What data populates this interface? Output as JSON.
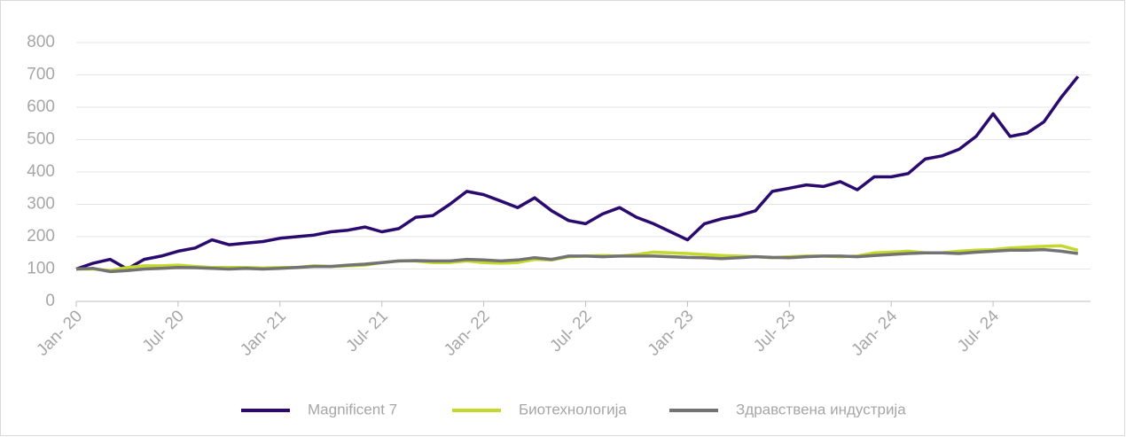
{
  "chart_data": {
    "type": "line",
    "categories": [
      "Jan- 20",
      null,
      null,
      null,
      null,
      null,
      "Jul- 20",
      null,
      null,
      null,
      null,
      null,
      "Jan- 21",
      null,
      null,
      null,
      null,
      null,
      "Jul- 21",
      null,
      null,
      null,
      null,
      null,
      "Jan- 22",
      null,
      null,
      null,
      null,
      null,
      "Jul- 22",
      null,
      null,
      null,
      null,
      null,
      "Jan- 23",
      null,
      null,
      null,
      null,
      null,
      "Jul- 23",
      null,
      null,
      null,
      null,
      null,
      "Jan- 24",
      null,
      null,
      null,
      null,
      null,
      "Jul- 24",
      null,
      null,
      null,
      null,
      null
    ],
    "series": [
      {
        "name": "Magnificent 7",
        "color": "#2a0a6e",
        "values": [
          100,
          118,
          130,
          100,
          130,
          140,
          155,
          165,
          190,
          175,
          180,
          185,
          195,
          200,
          205,
          215,
          220,
          230,
          215,
          225,
          260,
          265,
          300,
          340,
          330,
          310,
          290,
          320,
          280,
          250,
          240,
          270,
          290,
          260,
          240,
          215,
          190,
          240,
          255,
          265,
          280,
          340,
          350,
          360,
          355,
          370,
          345,
          385,
          385,
          395,
          440,
          450,
          470,
          510,
          580,
          510,
          520,
          555,
          630,
          695
        ]
      },
      {
        "name": "Биотехнологија",
        "color": "#c5d92d",
        "values": [
          100,
          100,
          95,
          105,
          110,
          110,
          112,
          108,
          105,
          105,
          105,
          103,
          105,
          105,
          110,
          108,
          110,
          112,
          120,
          125,
          125,
          120,
          120,
          125,
          120,
          118,
          120,
          130,
          128,
          138,
          140,
          142,
          140,
          145,
          152,
          150,
          148,
          145,
          142,
          140,
          138,
          135,
          138,
          140,
          140,
          138,
          140,
          150,
          152,
          155,
          150,
          150,
          155,
          158,
          160,
          165,
          168,
          170,
          172,
          158
        ]
      },
      {
        "name": "Здравствена индустрија",
        "color": "#737373",
        "values": [
          100,
          102,
          92,
          95,
          100,
          102,
          105,
          104,
          102,
          100,
          102,
          100,
          102,
          105,
          108,
          108,
          112,
          115,
          120,
          125,
          126,
          125,
          125,
          130,
          128,
          125,
          128,
          135,
          130,
          140,
          140,
          138,
          140,
          140,
          140,
          138,
          136,
          135,
          132,
          135,
          138,
          136,
          135,
          138,
          140,
          140,
          138,
          142,
          145,
          148,
          150,
          150,
          148,
          152,
          155,
          158,
          158,
          160,
          155,
          148
        ]
      }
    ],
    "ylim": [
      0,
      800
    ],
    "yticks": [
      0,
      100,
      200,
      300,
      400,
      500,
      600,
      700,
      800
    ],
    "grid": true
  }
}
